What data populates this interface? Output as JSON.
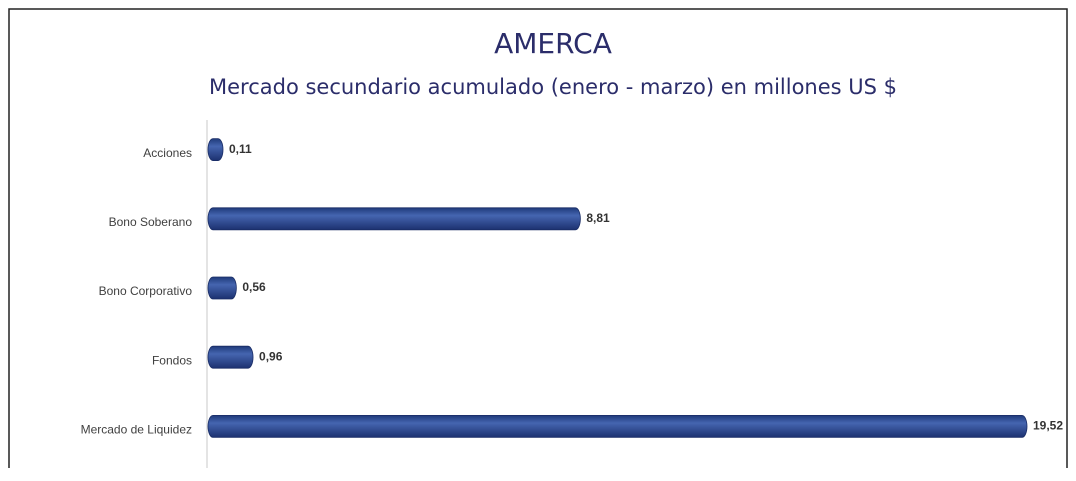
{
  "chart_data": {
    "type": "hbar",
    "title": "AMERCA",
    "subtitle": "Mercado secundario acumulado (enero - marzo) en millones US $",
    "categories": [
      "Acciones",
      "Bono Soberano",
      "Bono Corporativo",
      "Fondos",
      "Mercado de Liquidez"
    ],
    "values": [
      0.11,
      8.81,
      0.56,
      0.96,
      19.52
    ],
    "value_labels": [
      "0,11",
      "8,81",
      "0,56",
      "0,96",
      "19,52"
    ],
    "color": "#2f4f9a"
  }
}
